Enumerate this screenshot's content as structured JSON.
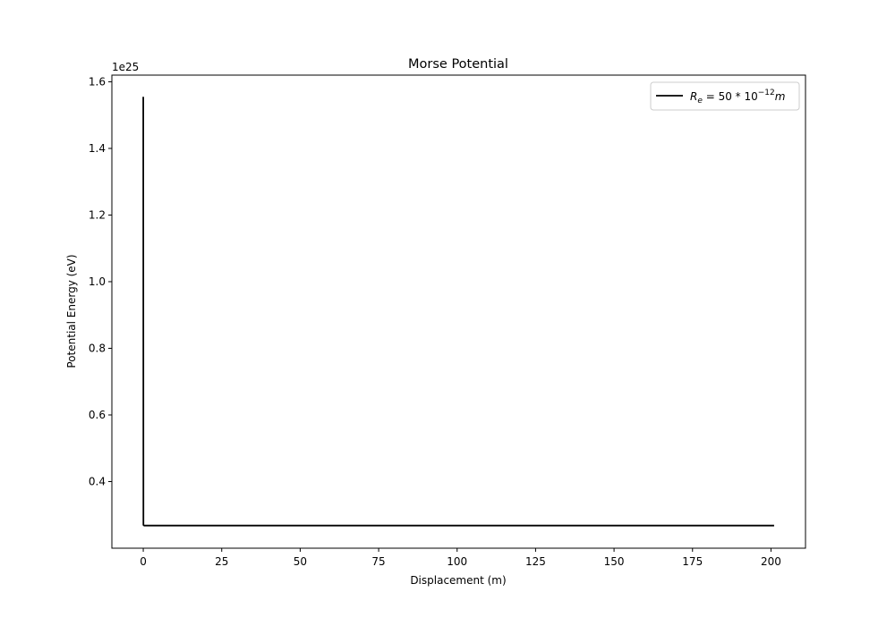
{
  "chart_data": {
    "type": "line",
    "title": "Morse Potential",
    "xlabel": "Displacement (m)",
    "ylabel": "Potential Energy (eV)",
    "y_offset_text": "1e25",
    "xlim": [
      -10,
      211
    ],
    "ylim": [
      0.2,
      1.62
    ],
    "x_ticks": [
      0,
      25,
      50,
      75,
      100,
      125,
      150,
      175,
      200
    ],
    "x_tick_labels": [
      "0",
      "25",
      "50",
      "75",
      "100",
      "125",
      "150",
      "175",
      "200"
    ],
    "y_ticks": [
      0.4,
      0.6,
      0.8,
      1.0,
      1.2,
      1.4,
      1.6
    ],
    "y_tick_labels": [
      "0.4",
      "0.6",
      "0.8",
      "1.0",
      "1.2",
      "1.4",
      "1.6"
    ],
    "grid": false,
    "legend_position": "upper right",
    "series": [
      {
        "name": "R_e = 50*10^-12 m",
        "color": "#000000",
        "x": [
          0,
          0.05,
          0.3,
          201
        ],
        "y": [
          1.555,
          0.27,
          0.268,
          0.268
        ]
      }
    ]
  }
}
